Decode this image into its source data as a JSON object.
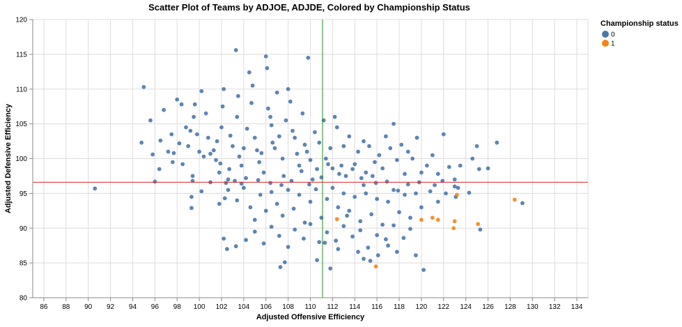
{
  "chart_data": {
    "type": "scatter",
    "title": "Scatter Plot of Teams by ADJOE, ADJDE, Colored by Championship Status",
    "xlabel": "Adjusted Offensive Efficiency",
    "ylabel": "Adjusted Defensive Efficiency",
    "xlim": [
      85,
      135
    ],
    "ylim": [
      80,
      120
    ],
    "x_ticks": [
      86,
      88,
      90,
      92,
      94,
      96,
      98,
      100,
      102,
      104,
      106,
      108,
      110,
      112,
      114,
      116,
      118,
      120,
      122,
      124,
      126,
      128,
      130,
      132,
      134
    ],
    "y_ticks": [
      80,
      85,
      90,
      95,
      100,
      105,
      110,
      115,
      120
    ],
    "x_tick_labels": [
      "86",
      "88",
      "90",
      "92",
      "94",
      "96",
      "98",
      "100",
      "102",
      "104",
      "106",
      "108",
      "110",
      "112",
      "114",
      "116",
      "118",
      "120",
      "122",
      "124",
      "126",
      "128",
      "130",
      "132",
      "134"
    ],
    "y_tick_labels": [
      "80",
      "85",
      "90",
      "95",
      "100",
      "105",
      "110",
      "115",
      "120"
    ],
    "grid": true,
    "reference_lines": {
      "vertical_x": 111.1,
      "vertical_color": "#228b22",
      "horizontal_y": 96.6,
      "horizontal_color": "#d62728"
    },
    "legend": {
      "title": "Championship status",
      "placement": "top-right",
      "entries": [
        {
          "label": "0",
          "color": "#4c78a8"
        },
        {
          "label": "1",
          "color": "#f58518"
        }
      ]
    },
    "series": [
      {
        "name": "0",
        "color": "#4c78a8",
        "points": [
          [
            90.6,
            95.7
          ],
          [
            94.8,
            102.3
          ],
          [
            95.0,
            110.3
          ],
          [
            95.6,
            105.5
          ],
          [
            95.8,
            100.6
          ],
          [
            96.0,
            96.7
          ],
          [
            96.4,
            98.5
          ],
          [
            96.5,
            102.6
          ],
          [
            96.8,
            107.0
          ],
          [
            97.2,
            101.0
          ],
          [
            97.5,
            103.5
          ],
          [
            97.6,
            99.5
          ],
          [
            97.7,
            100.8
          ],
          [
            98.0,
            108.5
          ],
          [
            98.2,
            102.2
          ],
          [
            98.4,
            107.8
          ],
          [
            98.5,
            99.2
          ],
          [
            98.8,
            104.5
          ],
          [
            99.0,
            101.8
          ],
          [
            99.2,
            104.0
          ],
          [
            99.3,
            94.5
          ],
          [
            99.3,
            92.9
          ],
          [
            99.4,
            96.8
          ],
          [
            99.4,
            97.5
          ],
          [
            99.5,
            106.0
          ],
          [
            99.6,
            107.8
          ],
          [
            99.8,
            103.5
          ],
          [
            100.0,
            101.0
          ],
          [
            100.2,
            109.7
          ],
          [
            100.4,
            100.3
          ],
          [
            100.6,
            106.5
          ],
          [
            100.8,
            103.0
          ],
          [
            101.0,
            100.7
          ],
          [
            101.3,
            101.2
          ],
          [
            101.5,
            99.8
          ],
          [
            101.6,
            102.5
          ],
          [
            101.8,
            98.0
          ],
          [
            101.9,
            99.3
          ],
          [
            102.0,
            104.5
          ],
          [
            102.1,
            107.5
          ],
          [
            102.2,
            110.0
          ],
          [
            102.3,
            94.3
          ],
          [
            102.4,
            96.5
          ],
          [
            102.6,
            97.0
          ],
          [
            102.7,
            98.5
          ],
          [
            102.8,
            103.3
          ],
          [
            103.0,
            101.8
          ],
          [
            103.2,
            96.8
          ],
          [
            103.3,
            115.6
          ],
          [
            103.4,
            106.0
          ],
          [
            103.5,
            109.0
          ],
          [
            103.6,
            100.3
          ],
          [
            103.8,
            99.0
          ],
          [
            104.0,
            101.5
          ],
          [
            104.2,
            97.2
          ],
          [
            104.3,
            104.3
          ],
          [
            104.5,
            112.4
          ],
          [
            104.7,
            108.0
          ],
          [
            104.8,
            110.5
          ],
          [
            105.0,
            103.0
          ],
          [
            105.2,
            101.2
          ],
          [
            105.4,
            99.5
          ],
          [
            105.6,
            100.8
          ],
          [
            105.8,
            98.0
          ],
          [
            106.0,
            114.7
          ],
          [
            106.1,
            113.0
          ],
          [
            106.2,
            107.2
          ],
          [
            106.4,
            106.0
          ],
          [
            106.5,
            104.8
          ],
          [
            106.6,
            102.3
          ],
          [
            106.8,
            101.5
          ],
          [
            107.0,
            109.5
          ],
          [
            107.2,
            103.2
          ],
          [
            107.5,
            100.0
          ],
          [
            107.6,
            97.5
          ],
          [
            107.8,
            105.5
          ],
          [
            108.0,
            110.0
          ],
          [
            108.2,
            108.2
          ],
          [
            108.4,
            104.0
          ],
          [
            108.6,
            103.0
          ],
          [
            108.8,
            100.7
          ],
          [
            109.0,
            99.0
          ],
          [
            109.2,
            98.2
          ],
          [
            109.3,
            106.5
          ],
          [
            109.5,
            102.0
          ],
          [
            109.7,
            101.0
          ],
          [
            109.8,
            114.5
          ],
          [
            110.0,
            99.8
          ],
          [
            110.2,
            97.0
          ],
          [
            110.4,
            103.8
          ],
          [
            110.6,
            98.5
          ],
          [
            110.8,
            102.3
          ],
          [
            111.0,
            97.3
          ],
          [
            111.2,
            105.5
          ],
          [
            111.4,
            100.0
          ],
          [
            111.6,
            99.2
          ],
          [
            111.8,
            101.5
          ],
          [
            112.0,
            98.6
          ],
          [
            112.2,
            106.0
          ],
          [
            112.4,
            104.5
          ],
          [
            112.6,
            97.8
          ],
          [
            112.8,
            99.0
          ],
          [
            113.0,
            101.8
          ],
          [
            113.2,
            97.5
          ],
          [
            113.5,
            103.2
          ],
          [
            113.8,
            98.5
          ],
          [
            114.0,
            99.2
          ],
          [
            114.3,
            101.0
          ],
          [
            114.6,
            97.2
          ],
          [
            114.8,
            102.5
          ],
          [
            115.0,
            98.0
          ],
          [
            115.3,
            101.8
          ],
          [
            115.6,
            97.5
          ],
          [
            115.8,
            99.5
          ],
          [
            116.2,
            100.5
          ],
          [
            116.5,
            98.6
          ],
          [
            116.8,
            103.2
          ],
          [
            117.2,
            101.5
          ],
          [
            117.5,
            105.0
          ],
          [
            117.8,
            99.8
          ],
          [
            118.2,
            102.0
          ],
          [
            118.5,
            97.8
          ],
          [
            118.8,
            101.0
          ],
          [
            119.2,
            100.0
          ],
          [
            119.6,
            103.0
          ],
          [
            120.0,
            98.0
          ],
          [
            120.5,
            99.0
          ],
          [
            121.0,
            100.5
          ],
          [
            121.5,
            97.8
          ],
          [
            122.0,
            103.5
          ],
          [
            122.5,
            98.8
          ],
          [
            123.0,
            97.0
          ],
          [
            123.5,
            99.0
          ],
          [
            124.6,
            100.0
          ],
          [
            125.0,
            101.8
          ],
          [
            125.2,
            98.5
          ],
          [
            126.0,
            98.6
          ],
          [
            126.8,
            102.3
          ],
          [
            100.2,
            95.3
          ],
          [
            101.0,
            96.6
          ],
          [
            101.8,
            93.5
          ],
          [
            102.6,
            95.5
          ],
          [
            103.4,
            94.0
          ],
          [
            104.0,
            95.8
          ],
          [
            104.6,
            93.0
          ],
          [
            105.0,
            91.2
          ],
          [
            105.5,
            94.8
          ],
          [
            106.0,
            92.5
          ],
          [
            106.5,
            95.2
          ],
          [
            107.0,
            93.5
          ],
          [
            107.5,
            91.8
          ],
          [
            108.0,
            95.5
          ],
          [
            108.5,
            92.8
          ],
          [
            109.0,
            94.8
          ],
          [
            109.5,
            90.8
          ],
          [
            110.0,
            93.8
          ],
          [
            110.5,
            95.6
          ],
          [
            111.0,
            91.5
          ],
          [
            111.5,
            94.2
          ],
          [
            112.0,
            95.8
          ],
          [
            112.5,
            93.0
          ],
          [
            113.0,
            95.0
          ],
          [
            113.5,
            92.5
          ],
          [
            114.0,
            94.5
          ],
          [
            114.5,
            91.0
          ],
          [
            115.0,
            95.0
          ],
          [
            115.5,
            92.0
          ],
          [
            116.0,
            94.2
          ],
          [
            116.5,
            90.5
          ],
          [
            117.0,
            93.8
          ],
          [
            117.5,
            95.5
          ],
          [
            118.0,
            92.3
          ],
          [
            118.5,
            94.8
          ],
          [
            119.0,
            91.5
          ],
          [
            119.5,
            95.0
          ],
          [
            120.0,
            93.0
          ],
          [
            120.8,
            95.3
          ],
          [
            121.5,
            93.8
          ],
          [
            122.2,
            95.0
          ],
          [
            123.0,
            96.0
          ],
          [
            123.3,
            95.8
          ],
          [
            104.2,
            88.3
          ],
          [
            105.0,
            89.5
          ],
          [
            105.8,
            87.8
          ],
          [
            106.5,
            90.2
          ],
          [
            107.2,
            88.9
          ],
          [
            108.0,
            87.3
          ],
          [
            108.6,
            89.8
          ],
          [
            109.4,
            88.5
          ],
          [
            110.0,
            90.6
          ],
          [
            110.8,
            88.0
          ],
          [
            111.5,
            89.4
          ],
          [
            112.3,
            88.2
          ],
          [
            113.0,
            90.3
          ],
          [
            113.8,
            88.8
          ],
          [
            114.5,
            89.7
          ],
          [
            115.2,
            87.2
          ],
          [
            116.0,
            89.0
          ],
          [
            116.8,
            88.4
          ],
          [
            117.5,
            90.4
          ],
          [
            118.4,
            88.6
          ],
          [
            119.0,
            89.9
          ],
          [
            102.2,
            88.5
          ],
          [
            102.5,
            87.0
          ],
          [
            103.3,
            87.4
          ],
          [
            107.3,
            84.4
          ],
          [
            107.7,
            85.1
          ],
          [
            110.6,
            85.4
          ],
          [
            111.3,
            87.9
          ],
          [
            111.8,
            84.2
          ],
          [
            112.5,
            87.0
          ],
          [
            114.3,
            86.6
          ],
          [
            114.8,
            85.6
          ],
          [
            115.4,
            85.3
          ],
          [
            116.1,
            86.1
          ],
          [
            117.0,
            87.5
          ],
          [
            117.8,
            86.6
          ],
          [
            119.5,
            86.1
          ],
          [
            120.2,
            84.0
          ],
          [
            129.1,
            93.6
          ],
          [
            125.3,
            89.8
          ],
          [
            124.3,
            95.1
          ],
          [
            123.1,
            94.5
          ],
          [
            113.3,
            91.8
          ],
          [
            114.8,
            96.2
          ],
          [
            115.9,
            96.5
          ],
          [
            116.9,
            96.7
          ],
          [
            117.9,
            95.4
          ],
          [
            118.8,
            96.3
          ],
          [
            119.8,
            96.6
          ],
          [
            121.2,
            96.2
          ],
          [
            121.9,
            96.8
          ],
          [
            108.3,
            96.8
          ],
          [
            107.4,
            96.2
          ],
          [
            106.4,
            96.5
          ],
          [
            105.3,
            96.9
          ],
          [
            103.8,
            96.4
          ],
          [
            109.9,
            96.3
          ]
        ]
      },
      {
        "name": "1",
        "color": "#f58518",
        "points": [
          [
            112.4,
            91.3
          ],
          [
            115.9,
            84.5
          ],
          [
            120.0,
            91.2
          ],
          [
            121.0,
            91.5
          ],
          [
            121.5,
            91.2
          ],
          [
            122.9,
            90.0
          ],
          [
            123.0,
            91.0
          ],
          [
            123.2,
            94.8
          ],
          [
            125.1,
            90.6
          ],
          [
            128.4,
            94.1
          ]
        ]
      }
    ]
  }
}
